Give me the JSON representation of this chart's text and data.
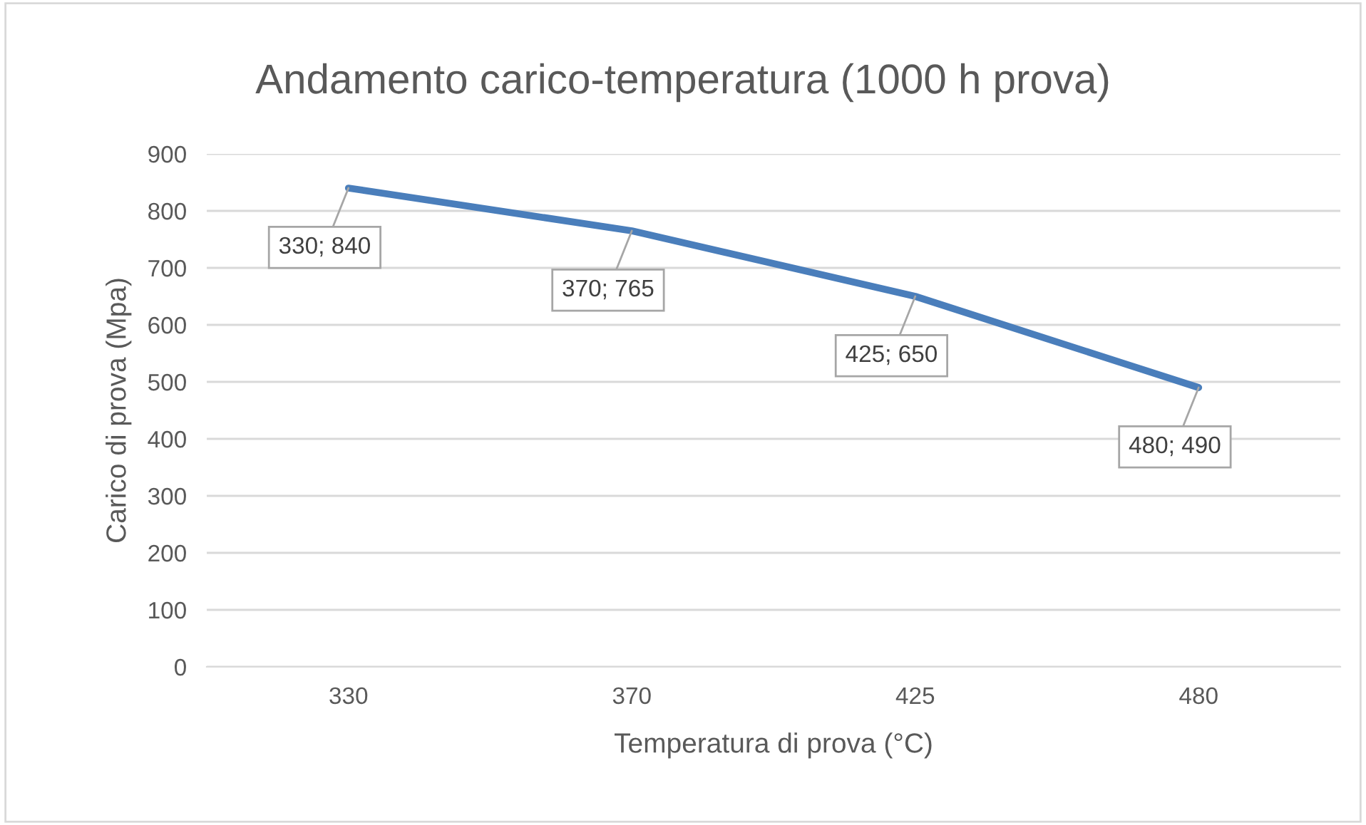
{
  "chart_data": {
    "type": "line",
    "title": "Andamento carico-temperatura (1000 h prova)",
    "xlabel": "Temperatura di prova (°C)",
    "ylabel": "Carico di prova (Mpa)",
    "categories": [
      "330",
      "370",
      "425",
      "480"
    ],
    "series": [
      {
        "color": "#4a7ebb",
        "values": [
          840,
          765,
          650,
          490
        ],
        "value_labels": [
          "330; 840",
          "370; 765",
          "425; 650",
          "480; 490"
        ]
      }
    ],
    "ylim": [
      0,
      900
    ],
    "yticks": [
      0,
      100,
      200,
      300,
      400,
      500,
      600,
      700,
      800,
      900
    ],
    "grid": "y"
  }
}
